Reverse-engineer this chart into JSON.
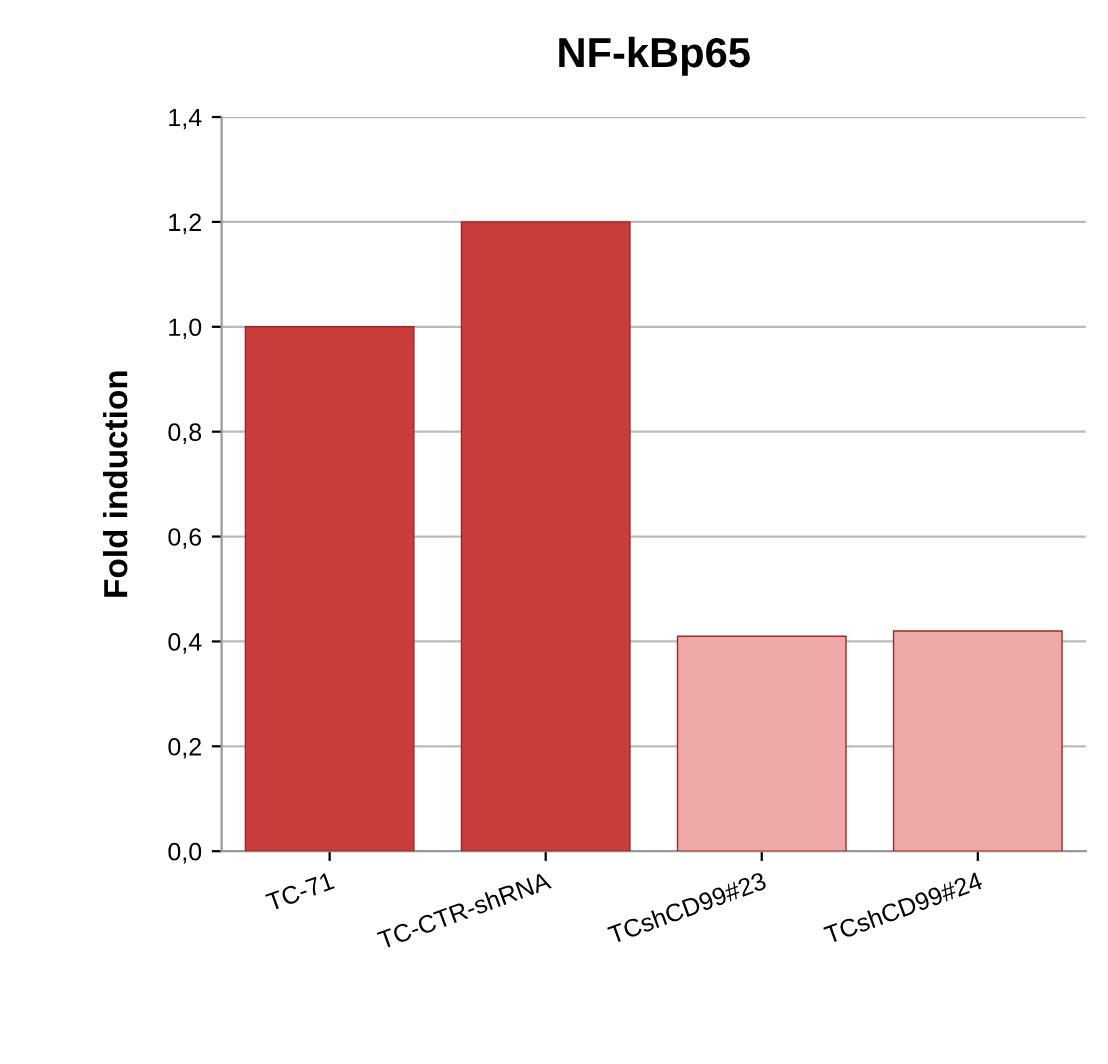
{
  "chart_data": {
    "type": "bar",
    "title": "NF-kBp65",
    "ylabel": "Fold induction",
    "categories": [
      "TC-71",
      "TC-CTR-shRNA",
      "TCshCD99#23",
      "TCshCD99#24"
    ],
    "values": [
      1.0,
      1.2,
      0.41,
      0.42
    ],
    "colors": [
      "#c83c3a",
      "#c83c3a",
      "#eea8a8",
      "#eea8a8"
    ],
    "ylim": [
      0,
      1.4
    ],
    "yticks": [
      {
        "value": 0,
        "label": "0,0"
      },
      {
        "value": 0.2,
        "label": "0,2"
      },
      {
        "value": 0.4,
        "label": "0,4"
      },
      {
        "value": 0.6,
        "label": "0,6"
      },
      {
        "value": 0.8,
        "label": "0,8"
      },
      {
        "value": 1.0,
        "label": "1,0"
      },
      {
        "value": 1.2,
        "label": "1,2"
      },
      {
        "value": 1.4,
        "label": "1,4"
      }
    ],
    "grid": "y"
  }
}
